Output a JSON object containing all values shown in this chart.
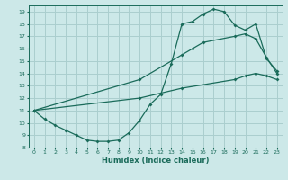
{
  "xlabel": "Humidex (Indice chaleur)",
  "bg_color": "#cce8e8",
  "grid_color": "#aacece",
  "line_color": "#1a6b5a",
  "xlim": [
    -0.5,
    23.5
  ],
  "ylim": [
    8,
    19.5
  ],
  "xticks": [
    0,
    1,
    2,
    3,
    4,
    5,
    6,
    7,
    8,
    9,
    10,
    11,
    12,
    13,
    14,
    15,
    16,
    17,
    18,
    19,
    20,
    21,
    22,
    23
  ],
  "yticks": [
    8,
    9,
    10,
    11,
    12,
    13,
    14,
    15,
    16,
    17,
    18,
    19
  ],
  "curve1_x": [
    0,
    1,
    2,
    3,
    4,
    5,
    6,
    7,
    8,
    9,
    10,
    11,
    12,
    13,
    14,
    15,
    16,
    17,
    18,
    19,
    20,
    21,
    22,
    23
  ],
  "curve1_y": [
    11,
    10.3,
    9.8,
    9.4,
    9.0,
    8.6,
    8.5,
    8.5,
    8.6,
    9.2,
    10.2,
    11.5,
    12.3,
    14.8,
    18.0,
    18.2,
    18.8,
    19.2,
    19.0,
    17.9,
    17.5,
    18.0,
    15.2,
    14.2
  ],
  "curve2_x": [
    0,
    10,
    14,
    15,
    16,
    19,
    20,
    21,
    22,
    23
  ],
  "curve2_y": [
    11,
    13.5,
    15.5,
    16.0,
    16.5,
    17.0,
    17.2,
    16.8,
    15.3,
    14.0
  ],
  "curve3_x": [
    0,
    10,
    14,
    19,
    20,
    21,
    22,
    23
  ],
  "curve3_y": [
    11,
    12.0,
    12.8,
    13.5,
    13.8,
    14.0,
    13.8,
    13.5
  ],
  "marker": "D",
  "markersize": 2.0,
  "linewidth": 0.9
}
